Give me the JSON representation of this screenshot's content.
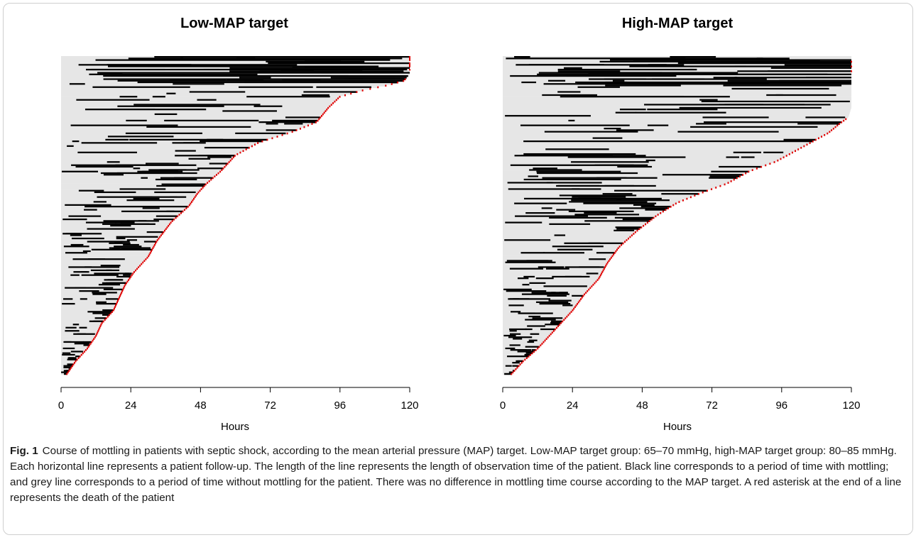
{
  "chart_data": [
    {
      "type": "horizontal-timeline",
      "title": "Low-MAP target",
      "xlabel": "Hours",
      "ylabel": "",
      "xlim": [
        0,
        120
      ],
      "xticks": [
        0,
        24,
        48,
        72,
        96,
        120
      ],
      "grid": false,
      "mottling_color": "#000000",
      "no_mottling_color": "#e6e6e6",
      "death_marker_color": "#e00000",
      "description": "Each row is one patient; row length = observation time (hours), descending.",
      "duration_profile": [
        [
          0,
          120
        ],
        [
          0.055,
          120
        ],
        [
          0.075,
          118
        ],
        [
          0.09,
          112
        ],
        [
          0.105,
          104
        ],
        [
          0.125,
          96
        ],
        [
          0.16,
          92
        ],
        [
          0.205,
          88
        ],
        [
          0.235,
          80
        ],
        [
          0.27,
          68
        ],
        [
          0.31,
          60
        ],
        [
          0.36,
          55
        ],
        [
          0.4,
          50
        ],
        [
          0.43,
          47
        ],
        [
          0.47,
          44
        ],
        [
          0.52,
          38
        ],
        [
          0.58,
          33
        ],
        [
          0.63,
          30
        ],
        [
          0.68,
          25
        ],
        [
          0.72,
          22
        ],
        [
          0.76,
          20
        ],
        [
          0.8,
          18
        ],
        [
          0.84,
          14
        ],
        [
          0.88,
          12
        ],
        [
          0.92,
          9
        ],
        [
          0.96,
          5
        ],
        [
          1,
          2
        ]
      ],
      "n_patients": 200
    },
    {
      "type": "horizontal-timeline",
      "title": "High-MAP target",
      "xlabel": "Hours",
      "ylabel": "",
      "xlim": [
        0,
        120
      ],
      "xticks": [
        0,
        24,
        48,
        72,
        96,
        120
      ],
      "grid": false,
      "mottling_color": "#000000",
      "no_mottling_color": "#e6e6e6",
      "death_marker_color": "#e00000",
      "description": "Each row is one patient; row length = observation time (hours), descending.",
      "duration_profile": [
        [
          0,
          120
        ],
        [
          0.16,
          120
        ],
        [
          0.19,
          119
        ],
        [
          0.21,
          116
        ],
        [
          0.24,
          112
        ],
        [
          0.27,
          106
        ],
        [
          0.3,
          100
        ],
        [
          0.33,
          94
        ],
        [
          0.36,
          85
        ],
        [
          0.4,
          77
        ],
        [
          0.43,
          68
        ],
        [
          0.46,
          60
        ],
        [
          0.5,
          53
        ],
        [
          0.55,
          46
        ],
        [
          0.6,
          40
        ],
        [
          0.65,
          36
        ],
        [
          0.7,
          33
        ],
        [
          0.75,
          28
        ],
        [
          0.8,
          24
        ],
        [
          0.84,
          20
        ],
        [
          0.88,
          16
        ],
        [
          0.92,
          12
        ],
        [
          0.96,
          7
        ],
        [
          1,
          3
        ]
      ],
      "n_patients": 200
    }
  ],
  "caption": {
    "label": "Fig. 1",
    "text": "Course of mottling in patients with septic shock, according to the mean arterial pressure (MAP) target. Low-MAP target group: 65–70 mmHg, high-MAP target group: 80–85 mmHg. Each horizontal line represents a patient follow-up. The length of the line represents the length of observation time of the patient. Black line corresponds to a period of time with mottling; and grey line corresponds to a period of time without mottling for the patient. There was no difference in mottling time course according to the MAP target. A red asterisk at the end of a line represents the death of the patient"
  }
}
